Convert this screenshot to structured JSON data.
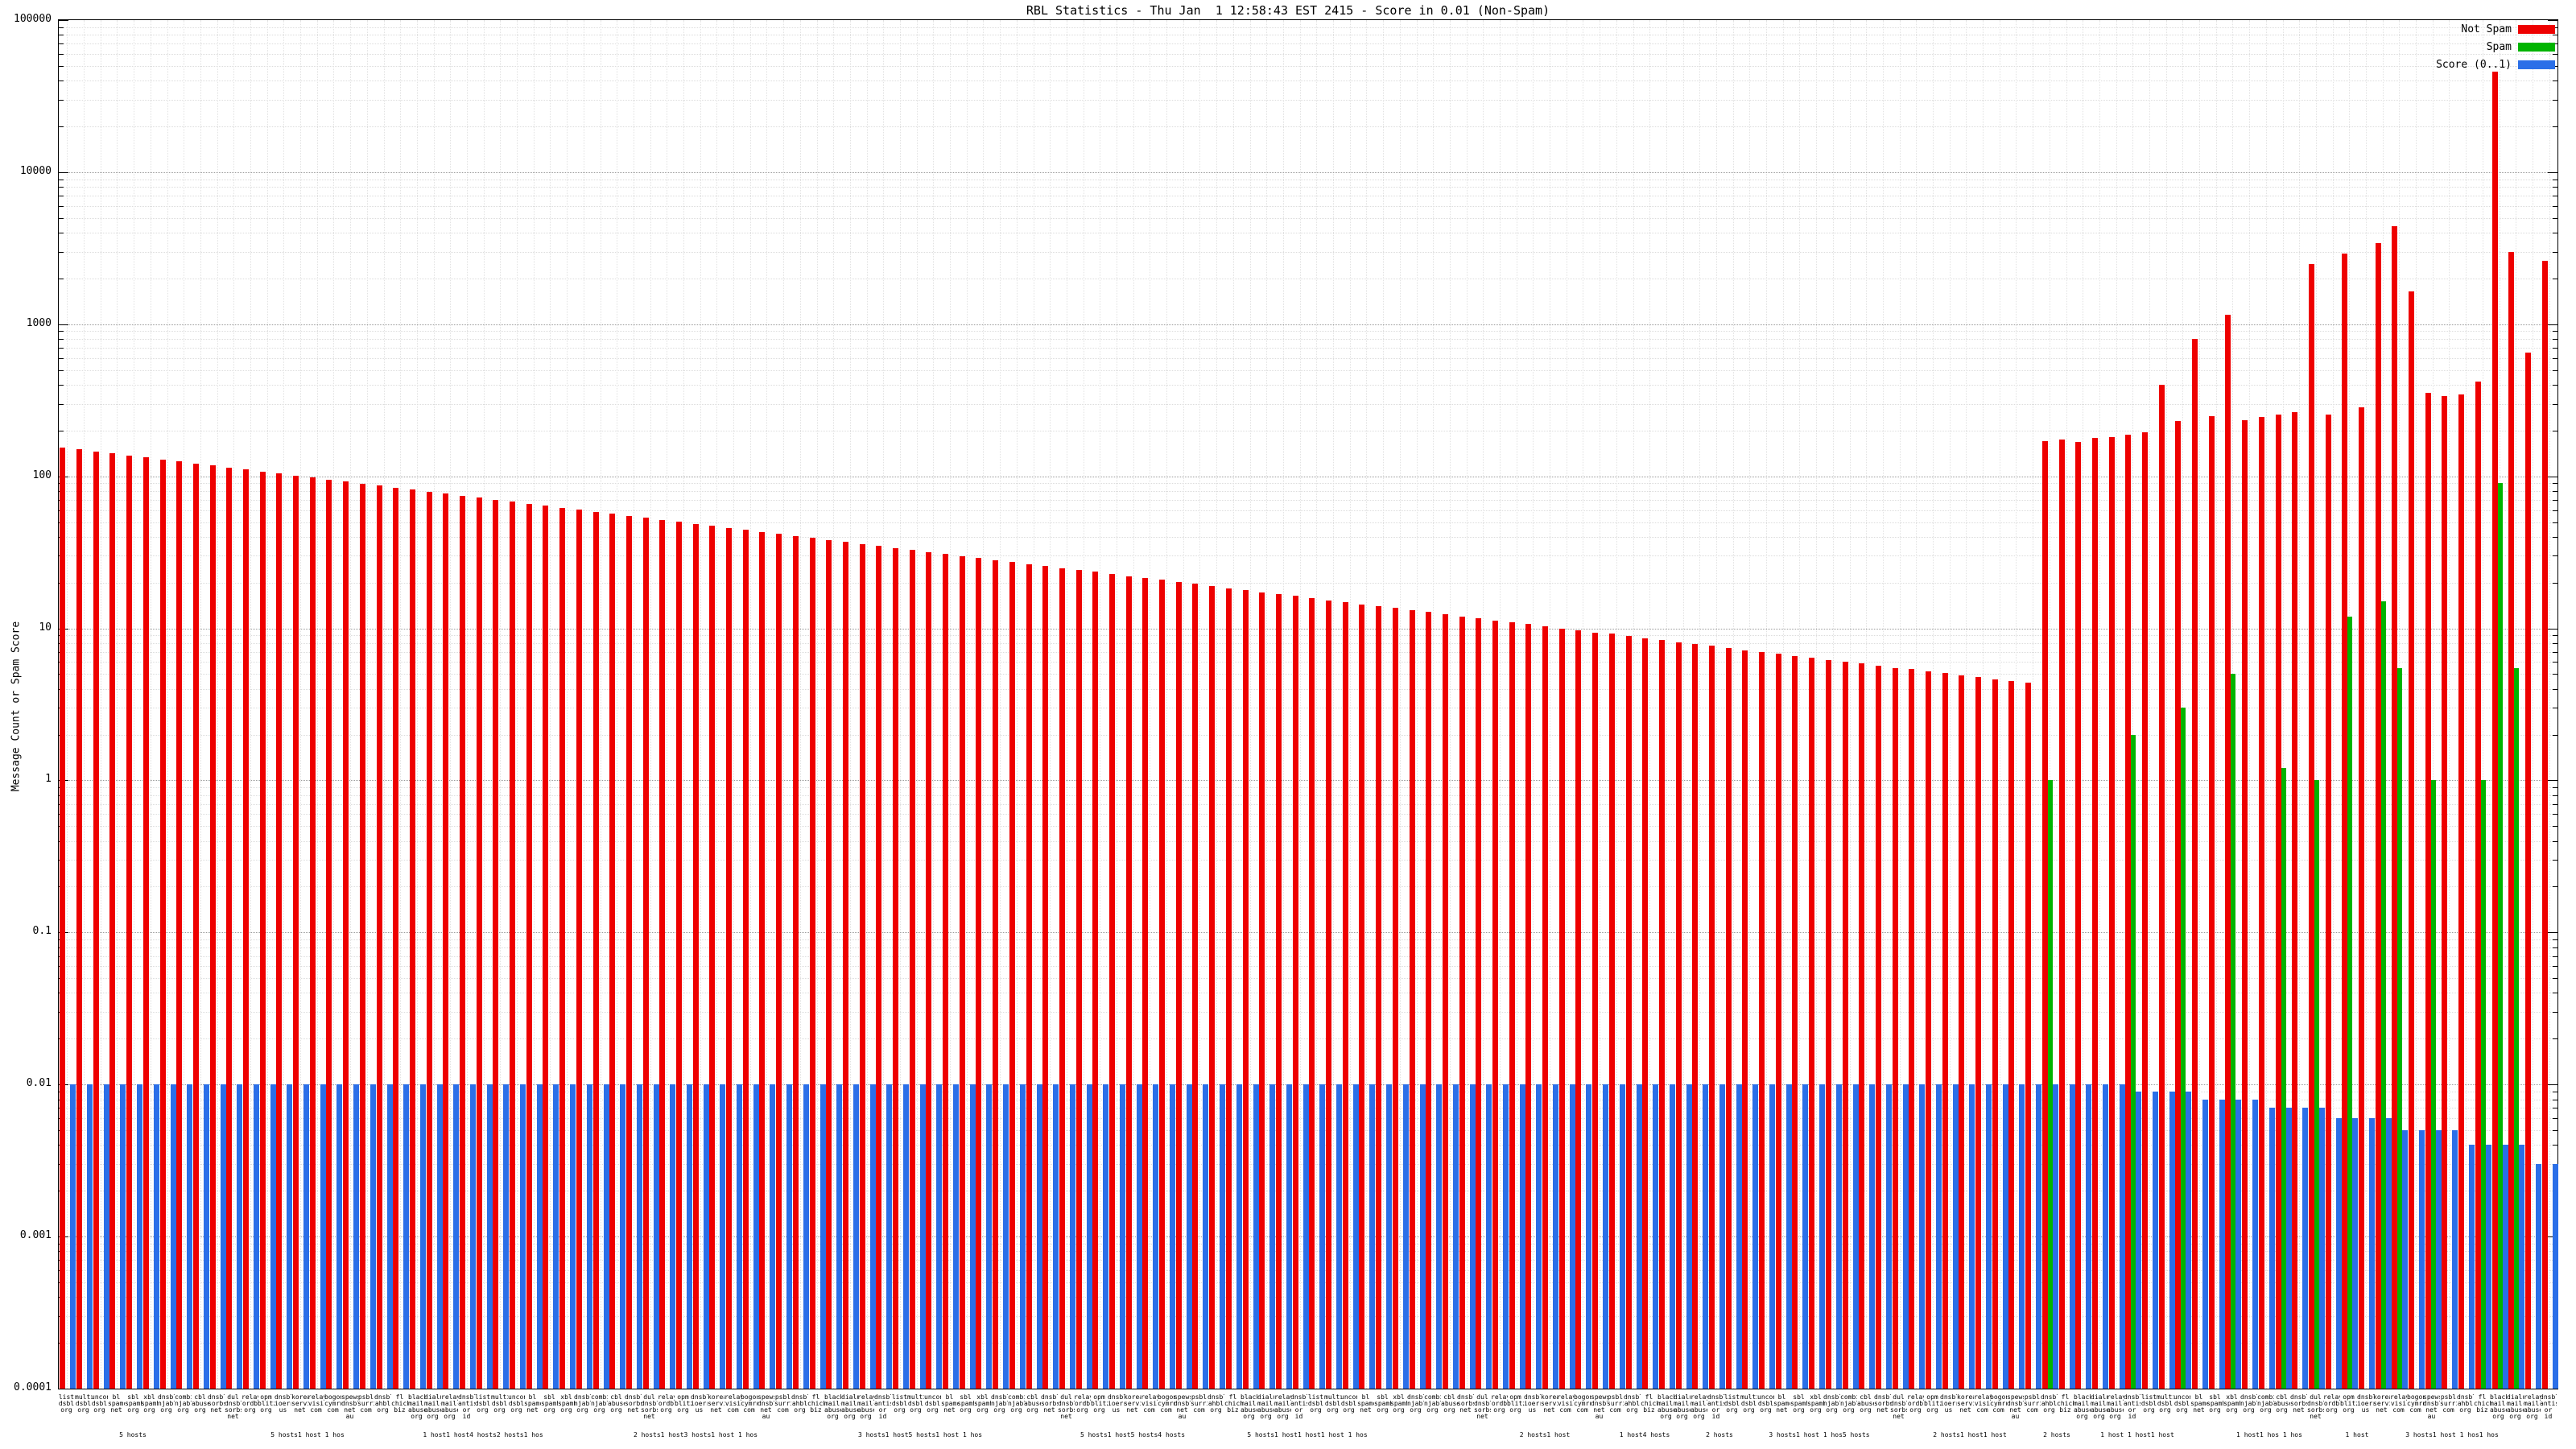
{
  "chart_data": {
    "type": "bar",
    "log_scale": true,
    "title": "RBL Statistics - Thu Jan  1 12:58:43 EST 2415 - Score in 0.01 (Non-Spam)",
    "ylabel": "Message Count or Spam Score",
    "xlabel": "",
    "ylim": [
      0.0001,
      100000
    ],
    "y_ticks": [
      "100000",
      "10000",
      "1000",
      "100",
      "10",
      "1",
      "0.1",
      "0.01",
      "0.001",
      "0.0001"
    ],
    "grid": true,
    "legend_position": "top-right",
    "legend": [
      {
        "label": "Not Spam",
        "color": "#ee0000"
      },
      {
        "label": "Spam",
        "color": "#00b400"
      },
      {
        "label": "Score (0..1)",
        "color": "#2b6fe8"
      }
    ],
    "series": [
      {
        "name": "Not Spam",
        "color": "#ee0000",
        "values": [
          155,
          150.4,
          145.9,
          141.5,
          137.2,
          133.1,
          129.1,
          125.3,
          121.5,
          117.9,
          114.3,
          110.9,
          107.6,
          104.3,
          101.2,
          98.2,
          95.2,
          92.4,
          89.6,
          86.9,
          84.3,
          81.8,
          79.3,
          77,
          74.6,
          72.4,
          70.2,
          68.1,
          66.1,
          64.1,
          62.2,
          60.3,
          58.5,
          56.7,
          55,
          53.4,
          51.8,
          50.2,
          48.7,
          47.3,
          45.8,
          44.5,
          43.1,
          41.8,
          40.6,
          39.4,
          38.2,
          37,
          35.9,
          34.9,
          33.8,
          32.8,
          31.8,
          30.9,
          29.9,
          29,
          28.2,
          27.3,
          26.5,
          25.7,
          24.9,
          24.2,
          23.5,
          22.8,
          22.1,
          21.4,
          20.8,
          20.2,
          19.6,
          19,
          18.4,
          17.9,
          17.3,
          16.8,
          16.3,
          15.8,
          15.3,
          14.9,
          14.4,
          14,
          13.6,
          13.2,
          12.8,
          12.4,
          12,
          11.7,
          11.3,
          11,
          10.7,
          10.3,
          10,
          9.7,
          9.4,
          9.2,
          8.9,
          8.6,
          8.4,
          8.1,
          7.9,
          7.7,
          7.4,
          7.2,
          7,
          6.8,
          6.6,
          6.4,
          6.2,
          6,
          5.9,
          5.7,
          5.5,
          5.4,
          5.2,
          5.1,
          4.9,
          4.8,
          4.6,
          4.5,
          4.4,
          170,
          175,
          168,
          178,
          182,
          188,
          195,
          400,
          230,
          800,
          250,
          1150,
          235,
          245,
          255,
          265,
          2500,
          255,
          2900,
          285,
          3400,
          4400,
          1650,
          355,
          335,
          345,
          420,
          46000,
          3000,
          650,
          2600
        ]
      },
      {
        "name": "Spam",
        "color": "#00b400",
        "values": [
          0,
          0,
          0,
          0,
          0,
          0,
          0,
          0,
          0,
          0,
          0,
          0,
          0,
          0,
          0,
          0,
          0,
          0,
          0,
          0,
          0,
          0,
          0,
          0,
          0,
          0,
          0,
          0,
          0,
          0,
          0,
          0,
          0,
          0,
          0,
          0,
          0,
          0,
          0,
          0,
          0,
          0,
          0,
          0,
          0,
          0,
          0,
          0,
          0,
          0,
          0,
          0,
          0,
          0,
          0,
          0,
          0,
          0,
          0,
          0,
          0,
          0,
          0,
          0,
          0,
          0,
          0,
          0,
          0,
          0,
          0,
          0,
          0,
          0,
          0,
          0,
          0,
          0,
          0,
          0,
          0,
          0,
          0,
          0,
          0,
          0,
          0,
          0,
          0,
          0,
          0,
          0,
          0,
          0,
          0,
          0,
          0,
          0,
          0,
          0,
          0,
          0,
          0,
          0,
          0,
          0,
          0,
          0,
          0,
          0,
          0,
          0,
          0,
          0,
          0,
          0,
          0,
          0,
          0,
          1,
          0,
          0,
          0,
          0,
          2,
          0,
          0,
          3,
          0,
          0,
          5,
          0,
          0,
          1.2,
          0,
          1,
          0,
          12,
          0,
          15,
          5.5,
          0,
          1,
          0,
          0,
          1,
          90,
          5.5,
          0,
          0
        ]
      },
      {
        "name": "Score (0..1)",
        "color": "#2b6fe8",
        "values": [
          0.01,
          0.01,
          0.01,
          0.01,
          0.01,
          0.01,
          0.01,
          0.01,
          0.01,
          0.01,
          0.01,
          0.01,
          0.01,
          0.01,
          0.01,
          0.01,
          0.01,
          0.01,
          0.01,
          0.01,
          0.01,
          0.01,
          0.01,
          0.01,
          0.01,
          0.01,
          0.01,
          0.01,
          0.01,
          0.01,
          0.01,
          0.01,
          0.01,
          0.01,
          0.01,
          0.01,
          0.01,
          0.01,
          0.01,
          0.01,
          0.01,
          0.01,
          0.01,
          0.01,
          0.01,
          0.01,
          0.01,
          0.01,
          0.01,
          0.01,
          0.01,
          0.01,
          0.01,
          0.01,
          0.01,
          0.01,
          0.01,
          0.01,
          0.01,
          0.01,
          0.01,
          0.01,
          0.01,
          0.01,
          0.01,
          0.01,
          0.01,
          0.01,
          0.01,
          0.01,
          0.01,
          0.01,
          0.01,
          0.01,
          0.01,
          0.01,
          0.01,
          0.01,
          0.01,
          0.01,
          0.01,
          0.01,
          0.01,
          0.01,
          0.01,
          0.01,
          0.01,
          0.01,
          0.01,
          0.01,
          0.01,
          0.01,
          0.01,
          0.01,
          0.01,
          0.01,
          0.01,
          0.01,
          0.01,
          0.01,
          0.01,
          0.01,
          0.01,
          0.01,
          0.01,
          0.01,
          0.01,
          0.01,
          0.01,
          0.01,
          0.01,
          0.01,
          0.01,
          0.01,
          0.01,
          0.01,
          0.01,
          0.01,
          0.01,
          0.01,
          0.01,
          0.01,
          0.01,
          0.01,
          0.009,
          0.009,
          0.009,
          0.009,
          0.008,
          0.008,
          0.008,
          0.008,
          0.007,
          0.007,
          0.007,
          0.007,
          0.006,
          0.006,
          0.006,
          0.006,
          0.005,
          0.005,
          0.005,
          0.005,
          0.004,
          0.004,
          0.004,
          0.004,
          0.003,
          0.003
        ]
      }
    ],
    "categories": [
      "list.dsbl.org",
      "multihop.dsbl.org",
      "unconfirmed.dsbl.org",
      "bl.spamcop.net",
      "sbl.spamhaus.org",
      "xbl.spamhaus.org",
      "dnsbl.njabl.org",
      "combined.njabl.org",
      "cbl.abuseat.org",
      "dnsbl.sorbs.net",
      "dul.dnsbl.sorbs.net",
      "relays.ordb.org",
      "opm.blitzed.org",
      "dnsbl.ioerror.us",
      "korea.services.net",
      "relays.visi.com",
      "bogons.cymru.com",
      "spews.dnsbl.net.au",
      "psbl.surriel.com",
      "dnsbl.ahbl.org",
      "fl.chickenboner.biz",
      "blackholes.mail-abuse.org",
      "dialups.mail-abuse.org",
      "relays.mail-abuse.org",
      "dnsbl.antispam.or.id",
      "list.dsbl.org",
      "multihop.dsbl.org",
      "unconfirmed.dsbl.org",
      "bl.spamcop.net",
      "sbl.spamhaus.org",
      "xbl.spamhaus.org",
      "dnsbl.njabl.org",
      "combined.njabl.org",
      "cbl.abuseat.org",
      "dnsbl.sorbs.net",
      "dul.dnsbl.sorbs.net",
      "relays.ordb.org",
      "opm.blitzed.org",
      "dnsbl.ioerror.us",
      "korea.services.net",
      "relays.visi.com",
      "bogons.cymru.com",
      "spews.dnsbl.net.au",
      "psbl.surriel.com",
      "dnsbl.ahbl.org",
      "fl.chickenboner.biz",
      "blackholes.mail-abuse.org",
      "dialups.mail-abuse.org",
      "relays.mail-abuse.org",
      "dnsbl.antispam.or.id",
      "list.dsbl.org",
      "multihop.dsbl.org",
      "unconfirmed.dsbl.org",
      "bl.spamcop.net",
      "sbl.spamhaus.org",
      "xbl.spamhaus.org",
      "dnsbl.njabl.org",
      "combined.njabl.org",
      "cbl.abuseat.org",
      "dnsbl.sorbs.net",
      "dul.dnsbl.sorbs.net",
      "relays.ordb.org",
      "opm.blitzed.org",
      "dnsbl.ioerror.us",
      "korea.services.net",
      "relays.visi.com",
      "bogons.cymru.com",
      "spews.dnsbl.net.au",
      "psbl.surriel.com",
      "dnsbl.ahbl.org",
      "fl.chickenboner.biz",
      "blackholes.mail-abuse.org",
      "dialups.mail-abuse.org",
      "relays.mail-abuse.org",
      "dnsbl.antispam.or.id",
      "list.dsbl.org",
      "multihop.dsbl.org",
      "unconfirmed.dsbl.org",
      "bl.spamcop.net",
      "sbl.spamhaus.org",
      "xbl.spamhaus.org",
      "dnsbl.njabl.org",
      "combined.njabl.org",
      "cbl.abuseat.org",
      "dnsbl.sorbs.net",
      "dul.dnsbl.sorbs.net",
      "relays.ordb.org",
      "opm.blitzed.org",
      "dnsbl.ioerror.us",
      "korea.services.net",
      "relays.visi.com",
      "bogons.cymru.com",
      "spews.dnsbl.net.au",
      "psbl.surriel.com",
      "dnsbl.ahbl.org",
      "fl.chickenboner.biz",
      "blackholes.mail-abuse.org",
      "dialups.mail-abuse.org",
      "relays.mail-abuse.org",
      "dnsbl.antispam.or.id",
      "list.dsbl.org",
      "multihop.dsbl.org",
      "unconfirmed.dsbl.org",
      "bl.spamcop.net",
      "sbl.spamhaus.org",
      "xbl.spamhaus.org",
      "dnsbl.njabl.org",
      "combined.njabl.org",
      "cbl.abuseat.org",
      "dnsbl.sorbs.net",
      "dul.dnsbl.sorbs.net",
      "relays.ordb.org",
      "opm.blitzed.org",
      "dnsbl.ioerror.us",
      "korea.services.net",
      "relays.visi.com",
      "bogons.cymru.com",
      "spews.dnsbl.net.au",
      "psbl.surriel.com",
      "dnsbl.ahbl.org",
      "fl.chickenboner.biz",
      "blackholes.mail-abuse.org",
      "dialups.mail-abuse.org",
      "relays.mail-abuse.org",
      "dnsbl.antispam.or.id",
      "list.dsbl.org",
      "multihop.dsbl.org",
      "unconfirmed.dsbl.org",
      "bl.spamcop.net",
      "sbl.spamhaus.org",
      "xbl.spamhaus.org",
      "dnsbl.njabl.org",
      "combined.njabl.org",
      "cbl.abuseat.org",
      "dnsbl.sorbs.net",
      "dul.dnsbl.sorbs.net",
      "relays.ordb.org",
      "opm.blitzed.org",
      "dnsbl.ioerror.us",
      "korea.services.net",
      "relays.visi.com",
      "bogons.cymru.com",
      "spews.dnsbl.net.au",
      "psbl.surriel.com",
      "dnsbl.ahbl.org",
      "fl.chickenboner.biz",
      "blackholes.mail-abuse.org",
      "dialups.mail-abuse.org",
      "relays.mail-abuse.org",
      "dnsbl.antispam.or.id"
    ],
    "group_labels": [
      {
        "pos": 0.03,
        "text": "5 hosts"
      },
      {
        "pos": 0.1,
        "text": "5 hosts1 host 1 hos"
      },
      {
        "pos": 0.17,
        "text": "1 host1 host4 hosts2 hosts1 hos"
      },
      {
        "pos": 0.255,
        "text": "2 hosts1 host3 hosts1 host 1 hos"
      },
      {
        "pos": 0.345,
        "text": "3 hosts1 host5 hosts1 host 1 hos"
      },
      {
        "pos": 0.43,
        "text": "5 hosts1 host5 hosts4 hosts"
      },
      {
        "pos": 0.5,
        "text": "5 hosts1 host1 host1 host 1 hos"
      },
      {
        "pos": 0.595,
        "text": "2 hosts1 host"
      },
      {
        "pos": 0.635,
        "text": "1 host4 hosts"
      },
      {
        "pos": 0.665,
        "text": "2 hosts"
      },
      {
        "pos": 0.705,
        "text": "3 hosts1 host 1 hos5 hosts"
      },
      {
        "pos": 0.765,
        "text": "2 hosts1 host1 host"
      },
      {
        "pos": 0.8,
        "text": "2 hosts"
      },
      {
        "pos": 0.832,
        "text": "1 host 1 host1 host"
      },
      {
        "pos": 0.885,
        "text": "1 host1 hos 1 hos"
      },
      {
        "pos": 0.92,
        "text": "1 host"
      },
      {
        "pos": 0.958,
        "text": "3 hosts1 host 1 hos1 hos"
      }
    ]
  }
}
